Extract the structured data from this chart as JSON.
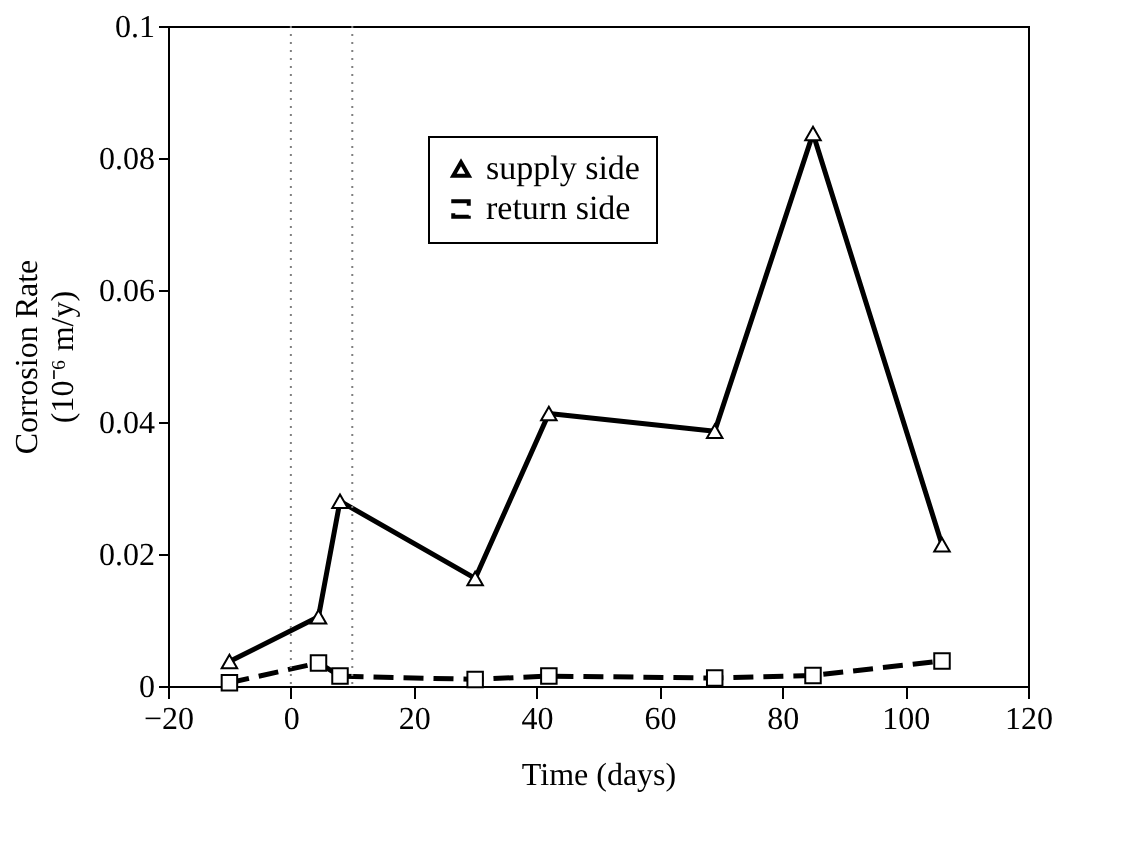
{
  "chart_data": {
    "type": "line",
    "xlabel": "Time (days)",
    "ylabel": "Corrosion Rate\n(10⁻⁶ m/y)",
    "xlim": [
      -20,
      120
    ],
    "xticks": [
      -20,
      0,
      20,
      40,
      60,
      80,
      100,
      120
    ],
    "ylim": [
      0,
      0.1
    ],
    "yticks": [
      0,
      0.02,
      0.04,
      0.06,
      0.08,
      0.1
    ],
    "grid": false,
    "legend": "top",
    "ref_lines": [
      {
        "axis": "x",
        "value": 0,
        "color": "#808080",
        "line_style": "dotted"
      },
      {
        "axis": "x",
        "value": 10,
        "color": "#808080",
        "line_style": "dotted"
      }
    ],
    "series": [
      {
        "name": "supply side",
        "color": "#000000",
        "marker": "triangle",
        "line_style": "solid",
        "x": [
          -10,
          4.5,
          8,
          30,
          42,
          69,
          85,
          106
        ],
        "values": [
          0.0037,
          0.0105,
          0.028,
          0.0163,
          0.0413,
          0.0386,
          0.0837,
          0.0214
        ]
      },
      {
        "name": "return side",
        "color": "#000000",
        "marker": "square",
        "line_style": "dashed",
        "x": [
          -10,
          4.5,
          8,
          30,
          42,
          69,
          85,
          106
        ],
        "values": [
          0.0005,
          0.0035,
          0.0015,
          0.001,
          0.0015,
          0.0012,
          0.0016,
          0.0038
        ]
      }
    ]
  }
}
